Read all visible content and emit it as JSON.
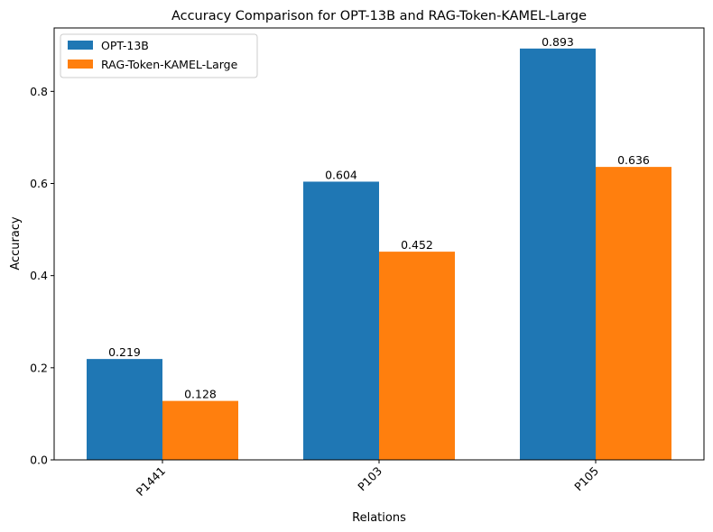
{
  "chart_data": {
    "type": "bar",
    "title": "Accuracy Comparison for OPT-13B and RAG-Token-KAMEL-Large",
    "xlabel": "Relations",
    "ylabel": "Accuracy",
    "categories": [
      "P1441",
      "P103",
      "P105"
    ],
    "series": [
      {
        "name": "OPT-13B",
        "values": [
          0.219,
          0.604,
          0.893
        ],
        "color": "#1f77b4"
      },
      {
        "name": "RAG-Token-KAMEL-Large",
        "values": [
          0.128,
          0.452,
          0.636
        ],
        "color": "#ff7f0e"
      }
    ],
    "data_labels": [
      [
        "0.219",
        "0.604",
        "0.893"
      ],
      [
        "0.128",
        "0.452",
        "0.636"
      ]
    ],
    "ylim": [
      0,
      0.9377
    ],
    "yticks": [
      0.0,
      0.2,
      0.4,
      0.6,
      0.8
    ],
    "ytick_labels": [
      "0.0",
      "0.2",
      "0.4",
      "0.6",
      "0.8"
    ],
    "xtick_rotation": 45,
    "grid": false,
    "legend_position": "top-left"
  }
}
